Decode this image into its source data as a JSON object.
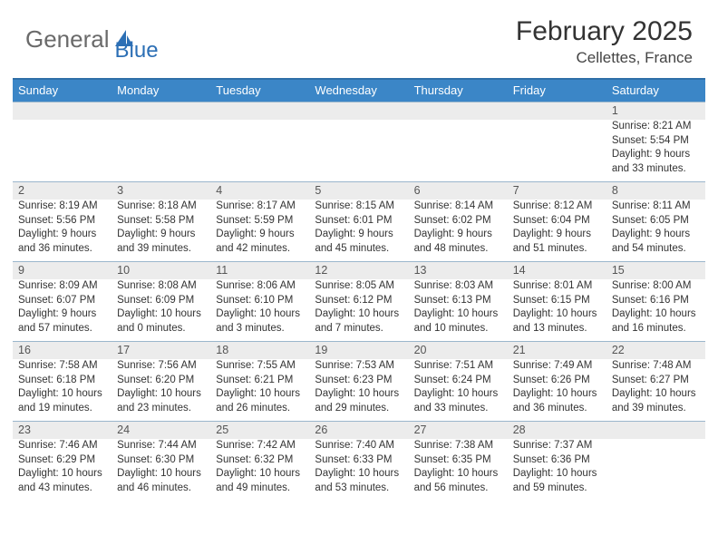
{
  "logo": {
    "part1": "General",
    "part2": "Blue",
    "icon_color": "#2c6fb5"
  },
  "title": "February 2025",
  "location": "Cellettes, France",
  "header_bg": "#3b86c7",
  "header_border": "#2f6fa8",
  "daynum_bg": "#ececec",
  "cell_border": "#9bb6cc",
  "day_names": [
    "Sunday",
    "Monday",
    "Tuesday",
    "Wednesday",
    "Thursday",
    "Friday",
    "Saturday"
  ],
  "weeks": [
    [
      null,
      null,
      null,
      null,
      null,
      null,
      {
        "n": "1",
        "sr": "8:21 AM",
        "ss": "5:54 PM",
        "dl": "9 hours and 33 minutes."
      }
    ],
    [
      {
        "n": "2",
        "sr": "8:19 AM",
        "ss": "5:56 PM",
        "dl": "9 hours and 36 minutes."
      },
      {
        "n": "3",
        "sr": "8:18 AM",
        "ss": "5:58 PM",
        "dl": "9 hours and 39 minutes."
      },
      {
        "n": "4",
        "sr": "8:17 AM",
        "ss": "5:59 PM",
        "dl": "9 hours and 42 minutes."
      },
      {
        "n": "5",
        "sr": "8:15 AM",
        "ss": "6:01 PM",
        "dl": "9 hours and 45 minutes."
      },
      {
        "n": "6",
        "sr": "8:14 AM",
        "ss": "6:02 PM",
        "dl": "9 hours and 48 minutes."
      },
      {
        "n": "7",
        "sr": "8:12 AM",
        "ss": "6:04 PM",
        "dl": "9 hours and 51 minutes."
      },
      {
        "n": "8",
        "sr": "8:11 AM",
        "ss": "6:05 PM",
        "dl": "9 hours and 54 minutes."
      }
    ],
    [
      {
        "n": "9",
        "sr": "8:09 AM",
        "ss": "6:07 PM",
        "dl": "9 hours and 57 minutes."
      },
      {
        "n": "10",
        "sr": "8:08 AM",
        "ss": "6:09 PM",
        "dl": "10 hours and 0 minutes."
      },
      {
        "n": "11",
        "sr": "8:06 AM",
        "ss": "6:10 PM",
        "dl": "10 hours and 3 minutes."
      },
      {
        "n": "12",
        "sr": "8:05 AM",
        "ss": "6:12 PM",
        "dl": "10 hours and 7 minutes."
      },
      {
        "n": "13",
        "sr": "8:03 AM",
        "ss": "6:13 PM",
        "dl": "10 hours and 10 minutes."
      },
      {
        "n": "14",
        "sr": "8:01 AM",
        "ss": "6:15 PM",
        "dl": "10 hours and 13 minutes."
      },
      {
        "n": "15",
        "sr": "8:00 AM",
        "ss": "6:16 PM",
        "dl": "10 hours and 16 minutes."
      }
    ],
    [
      {
        "n": "16",
        "sr": "7:58 AM",
        "ss": "6:18 PM",
        "dl": "10 hours and 19 minutes."
      },
      {
        "n": "17",
        "sr": "7:56 AM",
        "ss": "6:20 PM",
        "dl": "10 hours and 23 minutes."
      },
      {
        "n": "18",
        "sr": "7:55 AM",
        "ss": "6:21 PM",
        "dl": "10 hours and 26 minutes."
      },
      {
        "n": "19",
        "sr": "7:53 AM",
        "ss": "6:23 PM",
        "dl": "10 hours and 29 minutes."
      },
      {
        "n": "20",
        "sr": "7:51 AM",
        "ss": "6:24 PM",
        "dl": "10 hours and 33 minutes."
      },
      {
        "n": "21",
        "sr": "7:49 AM",
        "ss": "6:26 PM",
        "dl": "10 hours and 36 minutes."
      },
      {
        "n": "22",
        "sr": "7:48 AM",
        "ss": "6:27 PM",
        "dl": "10 hours and 39 minutes."
      }
    ],
    [
      {
        "n": "23",
        "sr": "7:46 AM",
        "ss": "6:29 PM",
        "dl": "10 hours and 43 minutes."
      },
      {
        "n": "24",
        "sr": "7:44 AM",
        "ss": "6:30 PM",
        "dl": "10 hours and 46 minutes."
      },
      {
        "n": "25",
        "sr": "7:42 AM",
        "ss": "6:32 PM",
        "dl": "10 hours and 49 minutes."
      },
      {
        "n": "26",
        "sr": "7:40 AM",
        "ss": "6:33 PM",
        "dl": "10 hours and 53 minutes."
      },
      {
        "n": "27",
        "sr": "7:38 AM",
        "ss": "6:35 PM",
        "dl": "10 hours and 56 minutes."
      },
      {
        "n": "28",
        "sr": "7:37 AM",
        "ss": "6:36 PM",
        "dl": "10 hours and 59 minutes."
      },
      null
    ]
  ],
  "labels": {
    "sunrise": "Sunrise: ",
    "sunset": "Sunset: ",
    "daylight": "Daylight: "
  }
}
